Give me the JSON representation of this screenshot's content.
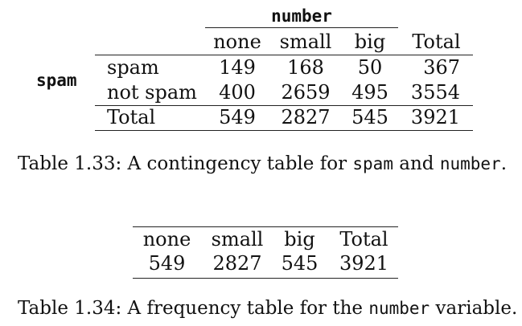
{
  "table133": {
    "col_var": "number",
    "row_var": "spam",
    "columns": [
      "none",
      "small",
      "big",
      "Total"
    ],
    "rows": [
      {
        "label": "spam",
        "values": [
          "149",
          "168",
          "50",
          "367"
        ]
      },
      {
        "label": "not spam",
        "values": [
          "400",
          "2659",
          "495",
          "3554"
        ]
      }
    ],
    "total": {
      "label": "Total",
      "values": [
        "549",
        "2827",
        "545",
        "3921"
      ]
    },
    "caption": {
      "prefix": "Table 1.33:",
      "text1": "A contingency table for",
      "code1": "spam",
      "text2": "and",
      "code2": "number",
      "text3": "."
    }
  },
  "table134": {
    "columns": [
      "none",
      "small",
      "big",
      "Total"
    ],
    "values": [
      "549",
      "2827",
      "545",
      "3921"
    ],
    "caption": {
      "prefix": "Table 1.34:",
      "text1": "A frequency table for the",
      "code1": "number",
      "text2": "variable."
    }
  }
}
